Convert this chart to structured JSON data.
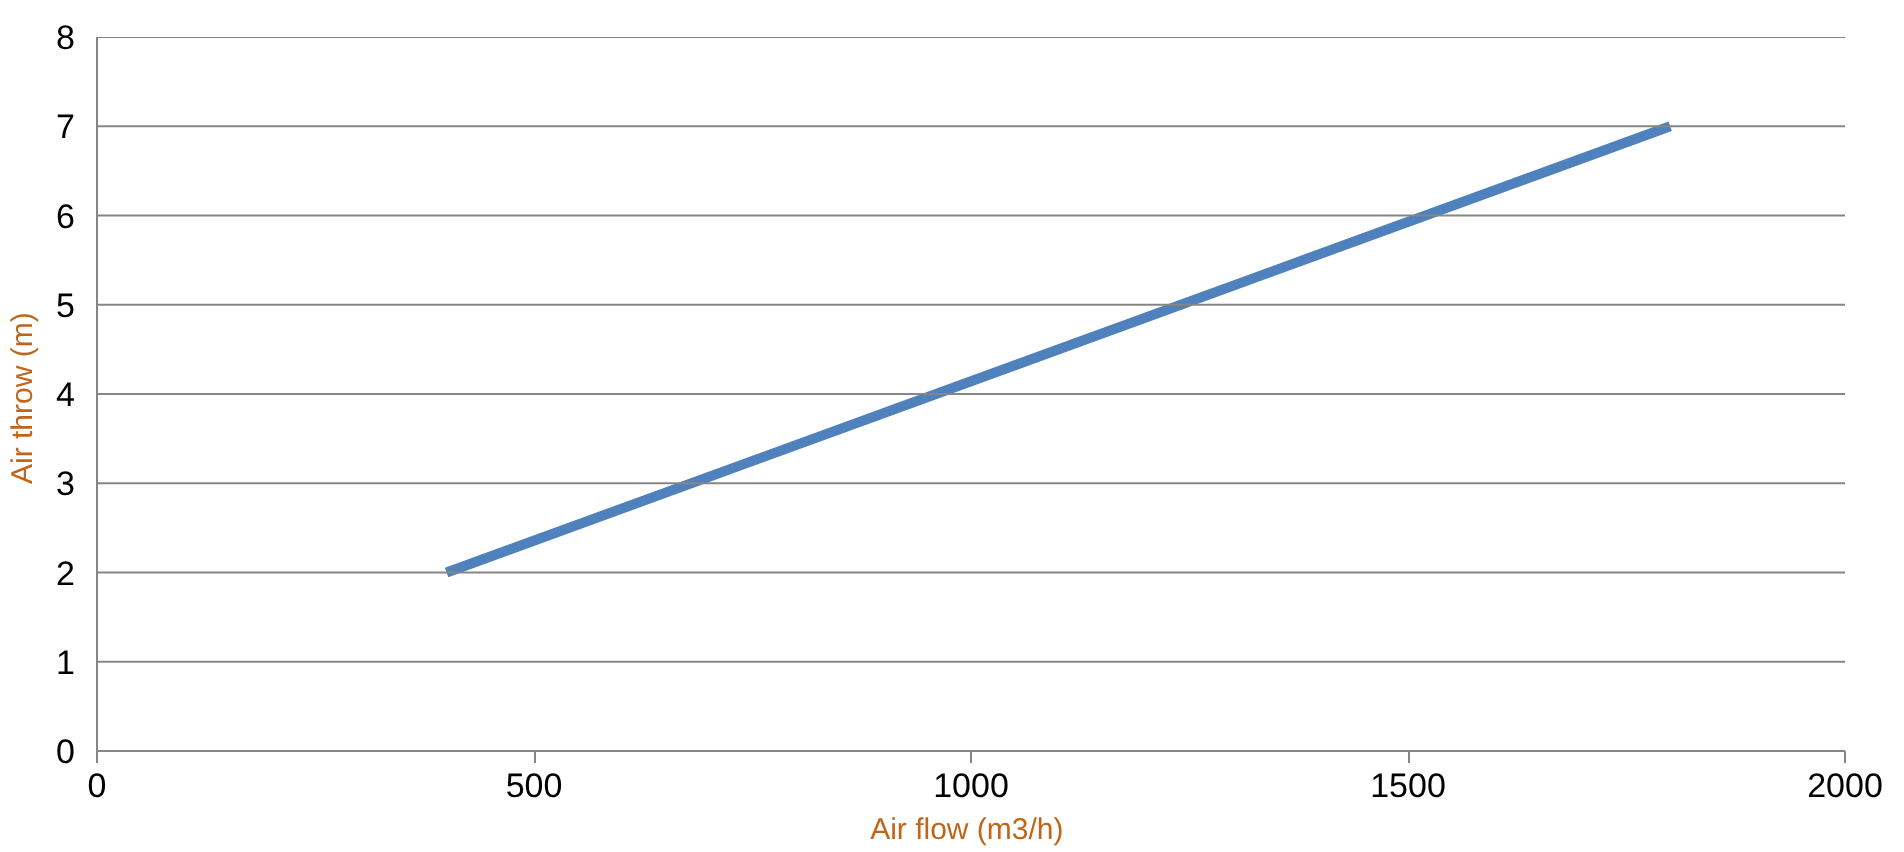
{
  "chart_data": {
    "type": "line",
    "xlabel": "Air flow  (m3/h)",
    "ylabel": "Air throw  (m)",
    "x": [
      400,
      1800
    ],
    "series": [
      {
        "color": "#4f81bd",
        "values": [
          2,
          7
        ]
      }
    ],
    "xlim": [
      0,
      2000
    ],
    "xticks": [
      0,
      500,
      1000,
      1500,
      2000
    ],
    "ylim": [
      0,
      8
    ],
    "yticks": [
      0,
      1,
      2,
      3,
      4,
      5,
      6,
      7,
      8
    ],
    "grid": "y",
    "marker": "none",
    "line_style": "solid"
  }
}
